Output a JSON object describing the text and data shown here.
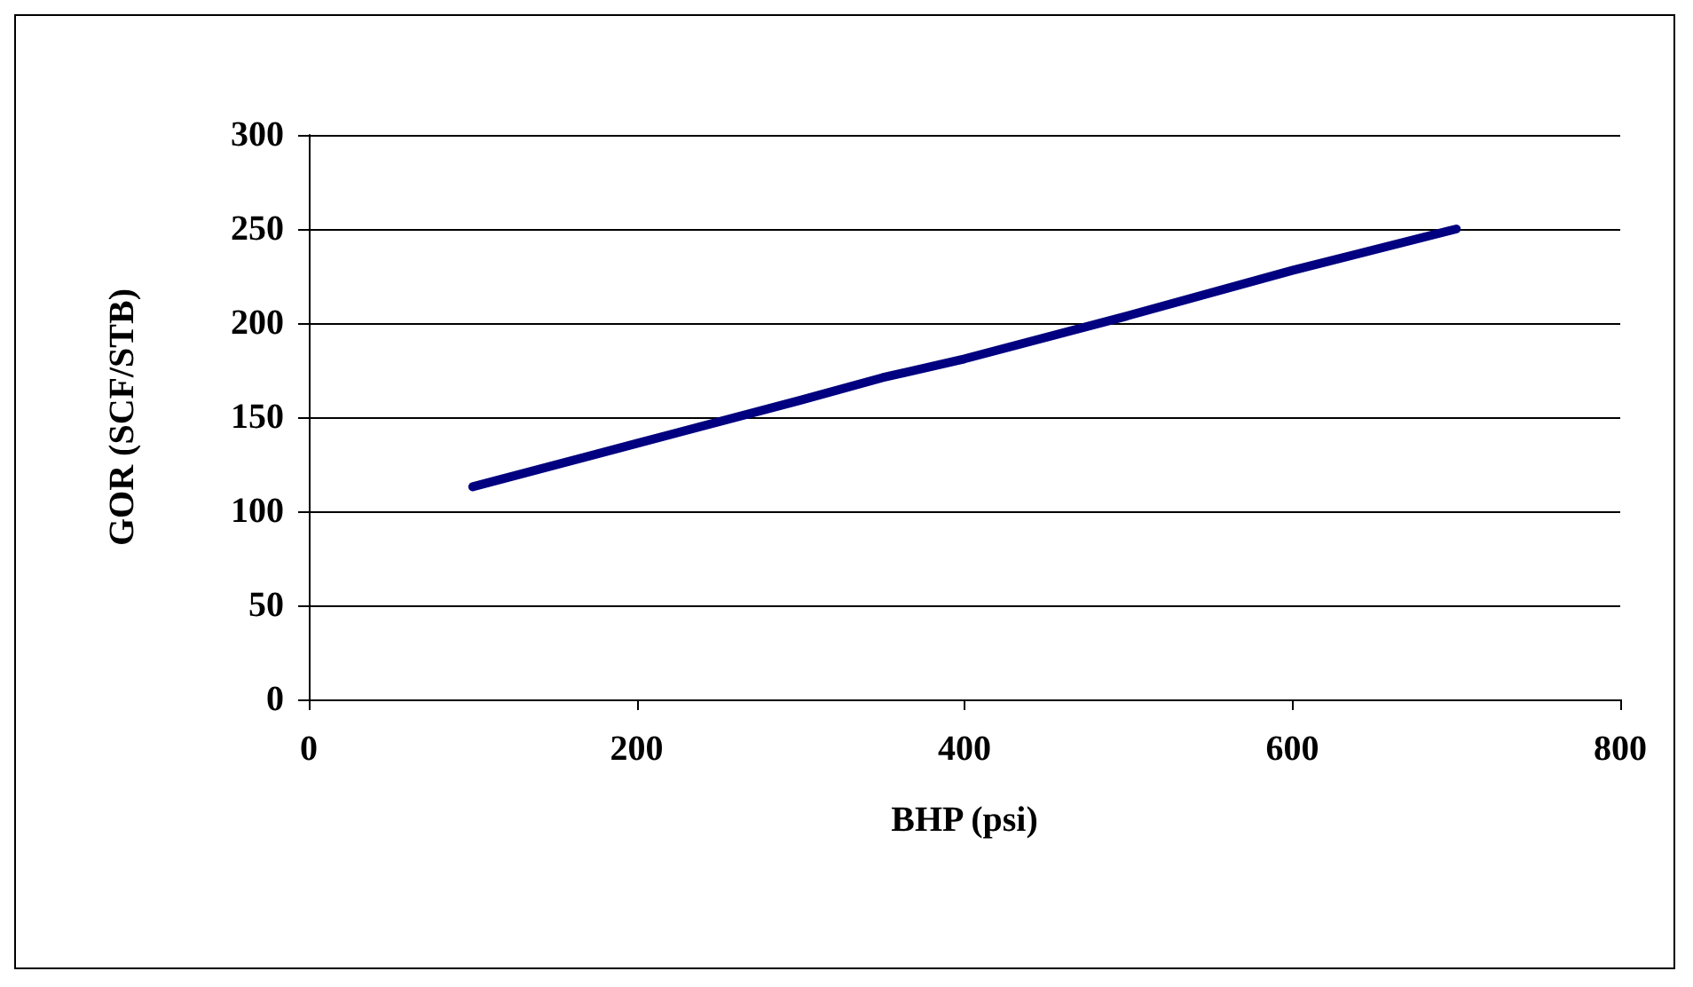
{
  "chart_data": {
    "type": "line",
    "xlabel": "BHP (psi)",
    "ylabel": "GOR (SCF/STB)",
    "x": [
      100,
      200,
      300,
      350,
      400,
      500,
      600,
      700
    ],
    "series": [
      {
        "color": "#000080",
        "values": [
          113,
          136,
          159,
          171,
          181,
          204,
          228,
          250
        ]
      }
    ],
    "xlim": [
      0,
      800
    ],
    "xticks": [
      0,
      200,
      400,
      600,
      800
    ],
    "ylim": [
      0,
      300
    ],
    "yticks": [
      0,
      50,
      100,
      150,
      200,
      250,
      300
    ],
    "grid": "y",
    "marker": "none",
    "line_style": "solid"
  }
}
